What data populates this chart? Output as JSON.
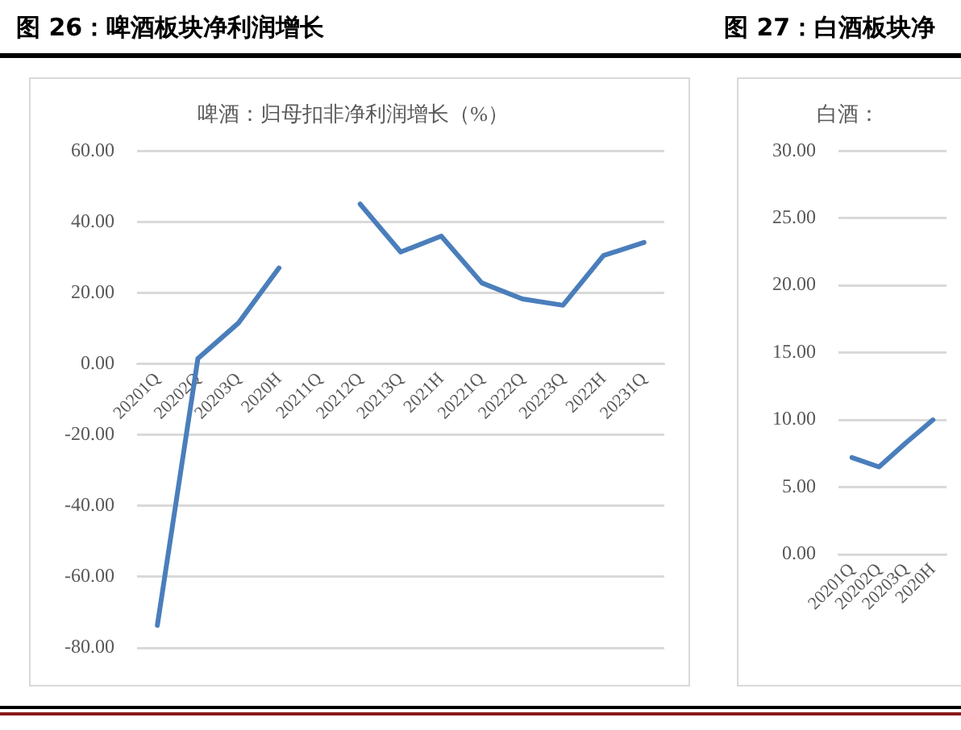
{
  "chart_data": [
    {
      "type": "line",
      "title": "图 26：啤酒板块净利润增长",
      "subtitle": "啤酒：归母扣非净利润增长（%）",
      "categories": [
        "20201Q",
        "20202Q",
        "20203Q",
        "2020H",
        "20211Q",
        "20212Q",
        "20213Q",
        "2021H",
        "20221Q",
        "20222Q",
        "20223Q",
        "2022H",
        "20231Q"
      ],
      "series": [
        {
          "color": "#4a7ebb",
          "values": [
            -73.7,
            1.5,
            11.5,
            27,
            null,
            45,
            31.5,
            36,
            22.8,
            18.3,
            16.5,
            30.5,
            34.2
          ]
        }
      ],
      "ylim": [
        -80,
        60
      ],
      "yticks": [
        {
          "value": -80,
          "label": "-80.00"
        },
        {
          "value": -60,
          "label": "-60.00"
        },
        {
          "value": -40,
          "label": "-40.00"
        },
        {
          "value": -20,
          "label": "-20.00"
        },
        {
          "value": 0,
          "label": "0.00"
        },
        {
          "value": 20,
          "label": "20.00"
        },
        {
          "value": 40,
          "label": "40.00"
        },
        {
          "value": 60,
          "label": "60.00"
        }
      ],
      "grid": "y",
      "legend": false,
      "marker": "none",
      "line_style": "solid"
    },
    {
      "type": "line",
      "title": "图 27：白酒板块净",
      "subtitle": "白酒：",
      "categories": [
        "20201Q",
        "20202Q",
        "20203Q",
        "2020H"
      ],
      "series": [
        {
          "color": "#4a7ebb",
          "values": [
            7.2,
            6.5,
            8.3,
            10
          ]
        }
      ],
      "ylim": [
        0,
        30
      ],
      "yticks": [
        {
          "value": 0,
          "label": "0.00"
        },
        {
          "value": 5,
          "label": "5.00"
        },
        {
          "value": 10,
          "label": "10.00"
        },
        {
          "value": 15,
          "label": "15.00"
        },
        {
          "value": 20,
          "label": "20.00"
        },
        {
          "value": 25,
          "label": "25.00"
        },
        {
          "value": 30,
          "label": "30.00"
        }
      ],
      "grid": "y",
      "legend": false,
      "marker": "none",
      "line_style": "solid"
    }
  ]
}
